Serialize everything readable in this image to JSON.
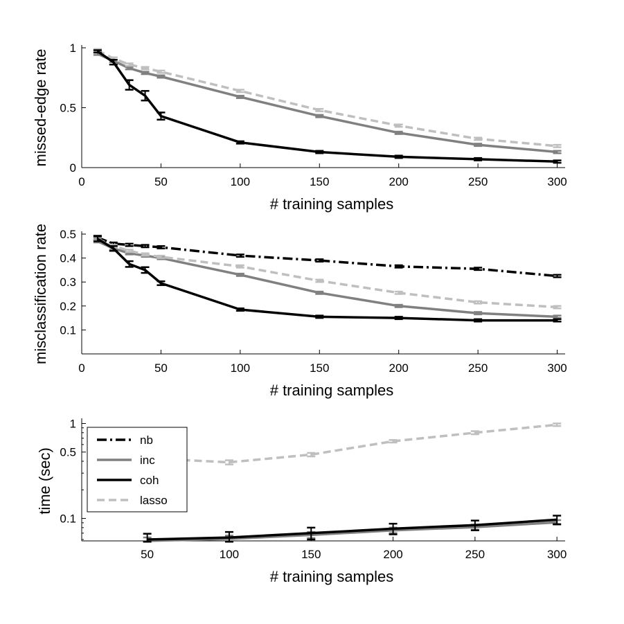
{
  "colors": {
    "nb": "#000000",
    "inc": "#808080",
    "coh": "#000000",
    "lasso": "#bfbfbf",
    "axis": "#000000",
    "background": "#ffffff"
  },
  "chart_data": [
    {
      "type": "line",
      "xlabel": "# training samples",
      "ylabel": "missed-edge rate",
      "xlim": [
        0,
        305
      ],
      "ylim": [
        0,
        1
      ],
      "xticks": [
        0,
        50,
        100,
        150,
        200,
        250,
        300
      ],
      "xtick_labels": [
        "0",
        "50",
        "100",
        "150",
        "200",
        "250",
        "300"
      ],
      "yticks": [
        0,
        0.5,
        1
      ],
      "ytick_labels": [
        "0",
        "0.5",
        "1"
      ],
      "series": [
        {
          "name": "inc",
          "style": "solid",
          "x": [
            10,
            20,
            30,
            40,
            50,
            100,
            150,
            200,
            250,
            300
          ],
          "y": [
            0.95,
            0.89,
            0.83,
            0.79,
            0.76,
            0.59,
            0.43,
            0.29,
            0.19,
            0.13
          ],
          "err": [
            0.01,
            0.01,
            0.01,
            0.01,
            0.01,
            0.01,
            0.01,
            0.01,
            0.01,
            0.01
          ]
        },
        {
          "name": "lasso",
          "style": "dashed",
          "x": [
            10,
            20,
            30,
            40,
            50,
            100,
            150,
            200,
            250,
            300
          ],
          "y": [
            0.98,
            0.91,
            0.86,
            0.83,
            0.8,
            0.64,
            0.48,
            0.35,
            0.24,
            0.18
          ],
          "err": [
            0.01,
            0.01,
            0.01,
            0.01,
            0.01,
            0.01,
            0.01,
            0.01,
            0.01,
            0.01
          ]
        },
        {
          "name": "coh",
          "style": "solid",
          "x": [
            10,
            20,
            30,
            40,
            50,
            100,
            150,
            200,
            250,
            300
          ],
          "y": [
            0.97,
            0.88,
            0.69,
            0.6,
            0.43,
            0.21,
            0.13,
            0.09,
            0.07,
            0.05
          ],
          "err": [
            0.01,
            0.02,
            0.04,
            0.04,
            0.03,
            0.01,
            0.01,
            0.01,
            0.01,
            0.01
          ]
        }
      ]
    },
    {
      "type": "line",
      "xlabel": "# training samples",
      "ylabel": "misclassification rate",
      "xlim": [
        0,
        305
      ],
      "ylim": [
        0,
        0.5
      ],
      "xticks": [
        0,
        50,
        100,
        150,
        200,
        250,
        300
      ],
      "xtick_labels": [
        "0",
        "50",
        "100",
        "150",
        "200",
        "250",
        "300"
      ],
      "yticks": [
        0.1,
        0.2,
        0.3,
        0.4,
        0.5
      ],
      "ytick_labels": [
        "0.1",
        "0.2",
        "0.3",
        "0.4",
        "0.5"
      ],
      "series": [
        {
          "name": "nb",
          "style": "dashdot",
          "x": [
            10,
            20,
            30,
            40,
            50,
            100,
            150,
            200,
            250,
            300
          ],
          "y": [
            0.485,
            0.46,
            0.455,
            0.45,
            0.445,
            0.41,
            0.39,
            0.365,
            0.355,
            0.325
          ],
          "err": [
            0.008,
            0.005,
            0.005,
            0.005,
            0.005,
            0.005,
            0.005,
            0.005,
            0.005,
            0.005
          ]
        },
        {
          "name": "inc",
          "style": "solid",
          "x": [
            10,
            20,
            30,
            40,
            50,
            100,
            150,
            200,
            250,
            300
          ],
          "y": [
            0.47,
            0.44,
            0.42,
            0.41,
            0.4,
            0.33,
            0.255,
            0.2,
            0.17,
            0.155
          ],
          "err": [
            0.005,
            0.005,
            0.005,
            0.005,
            0.005,
            0.005,
            0.005,
            0.005,
            0.005,
            0.005
          ]
        },
        {
          "name": "lasso",
          "style": "dashed",
          "x": [
            10,
            20,
            30,
            40,
            50,
            100,
            150,
            200,
            250,
            300
          ],
          "y": [
            0.48,
            0.45,
            0.43,
            0.415,
            0.405,
            0.365,
            0.305,
            0.255,
            0.215,
            0.195
          ],
          "err": [
            0.005,
            0.005,
            0.005,
            0.005,
            0.005,
            0.005,
            0.005,
            0.005,
            0.005,
            0.005
          ]
        },
        {
          "name": "coh",
          "style": "solid",
          "x": [
            10,
            20,
            30,
            40,
            50,
            100,
            150,
            200,
            250,
            300
          ],
          "y": [
            0.48,
            0.44,
            0.375,
            0.35,
            0.295,
            0.185,
            0.155,
            0.15,
            0.14,
            0.14
          ],
          "err": [
            0.01,
            0.01,
            0.012,
            0.012,
            0.008,
            0.005,
            0.005,
            0.005,
            0.005,
            0.005
          ]
        }
      ]
    },
    {
      "type": "line",
      "xlabel": "# training samples",
      "ylabel": "time (sec)",
      "yscale": "log",
      "xlim": [
        10,
        305
      ],
      "ylim": [
        0.058,
        1.06
      ],
      "xticks": [
        50,
        100,
        150,
        200,
        250,
        300
      ],
      "xtick_labels": [
        "50",
        "100",
        "150",
        "200",
        "250",
        "300"
      ],
      "yticks": [
        0.1,
        0.5,
        1
      ],
      "ytick_labels": [
        "0.1",
        "0.5",
        "1"
      ],
      "legend": {
        "position": "top-left",
        "entries": [
          "nb",
          "inc",
          "coh",
          "lasso"
        ]
      },
      "series": [
        {
          "name": "lasso",
          "style": "dashed",
          "x": [
            50,
            100,
            150,
            200,
            250,
            300
          ],
          "y": [
            0.43,
            0.39,
            0.47,
            0.65,
            0.8,
            0.97
          ],
          "err": [
            0.02,
            0.02,
            0.02,
            0.02,
            0.03,
            0.03
          ]
        },
        {
          "name": "inc",
          "style": "solid",
          "x": [
            50,
            100,
            150,
            200,
            250,
            300
          ],
          "y": [
            0.058,
            0.061,
            0.067,
            0.075,
            0.081,
            0.091
          ],
          "err": [
            0.005,
            0.005,
            0.005,
            0.005,
            0.005,
            0.005
          ]
        },
        {
          "name": "coh",
          "style": "solid",
          "x": [
            50,
            100,
            150,
            200,
            250,
            300
          ],
          "y": [
            0.06,
            0.063,
            0.07,
            0.078,
            0.085,
            0.097
          ],
          "err": [
            0.009,
            0.009,
            0.01,
            0.01,
            0.01,
            0.01
          ]
        }
      ]
    }
  ]
}
